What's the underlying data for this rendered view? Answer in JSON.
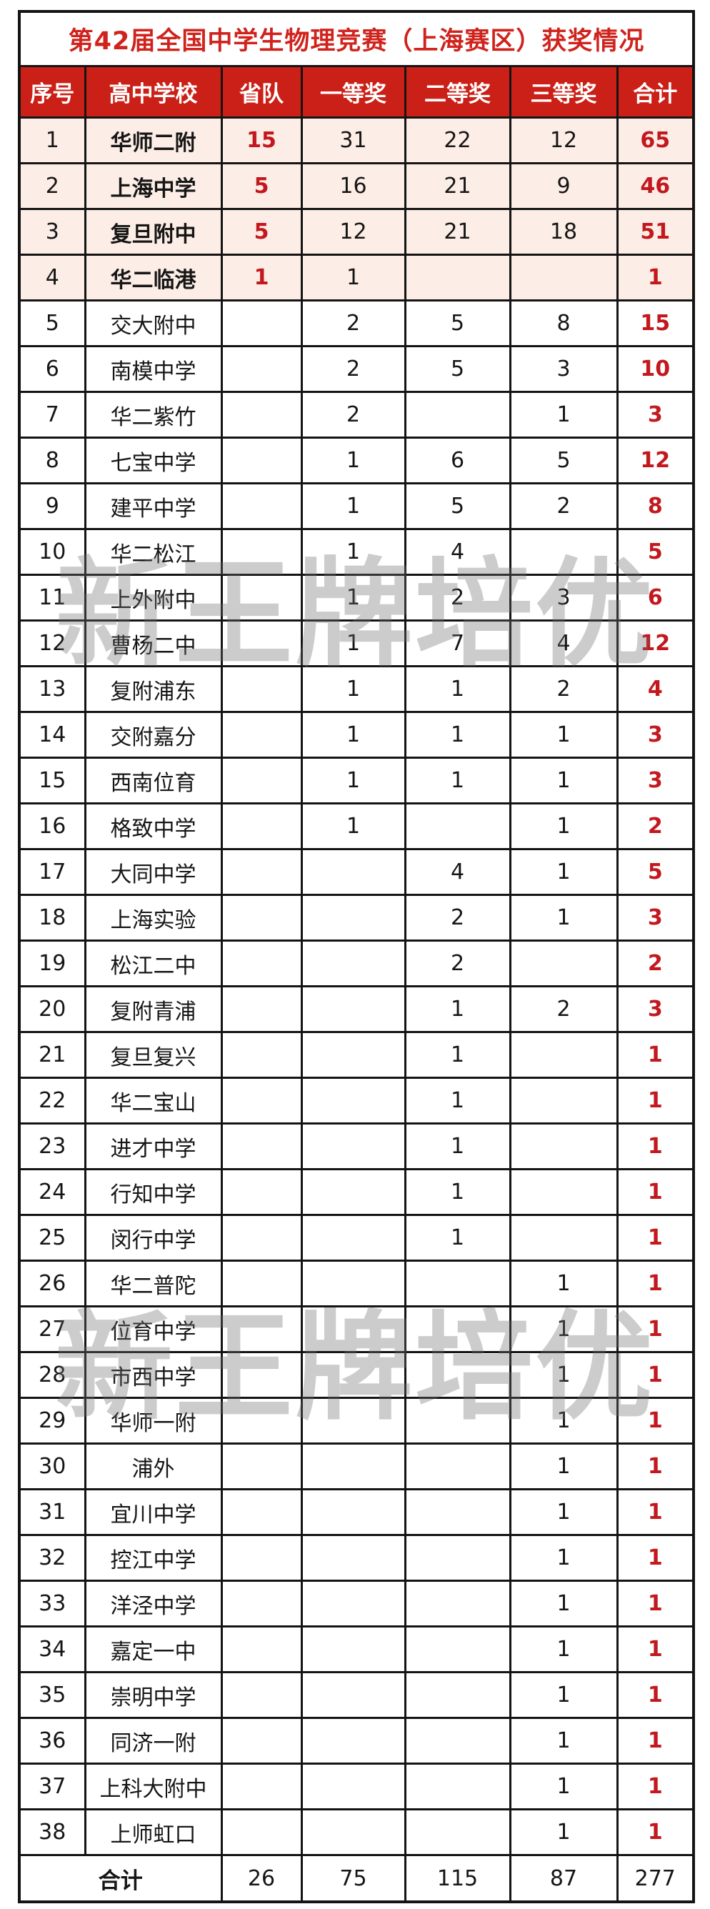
{
  "page": {
    "title": "第42届全国中学生物理竞赛（上海赛区）获奖情况"
  },
  "watermark": {
    "text": "新王牌培优"
  },
  "colors": {
    "header_bg": "#cb2017",
    "title_text": "#d0231d",
    "accent_red": "#c2181e",
    "highlight_row_bg": "#fceee6",
    "border": "#141414",
    "watermark": "rgba(110,110,110,0.35)"
  },
  "table": {
    "columns": [
      "序号",
      "高中学校",
      "省队",
      "一等奖",
      "二等奖",
      "三等奖",
      "合计"
    ],
    "rows": [
      {
        "no": "1",
        "school": "华师二附",
        "team": "15",
        "first": "31",
        "second": "22",
        "third": "12",
        "total": "65",
        "highlight": true
      },
      {
        "no": "2",
        "school": "上海中学",
        "team": "5",
        "first": "16",
        "second": "21",
        "third": "9",
        "total": "46",
        "highlight": true
      },
      {
        "no": "3",
        "school": "复旦附中",
        "team": "5",
        "first": "12",
        "second": "21",
        "third": "18",
        "total": "51",
        "highlight": true
      },
      {
        "no": "4",
        "school": "华二临港",
        "team": "1",
        "first": "1",
        "second": "",
        "third": "",
        "total": "1",
        "highlight": true
      },
      {
        "no": "5",
        "school": "交大附中",
        "team": "",
        "first": "2",
        "second": "5",
        "third": "8",
        "total": "15",
        "highlight": false
      },
      {
        "no": "6",
        "school": "南模中学",
        "team": "",
        "first": "2",
        "second": "5",
        "third": "3",
        "total": "10",
        "highlight": false
      },
      {
        "no": "7",
        "school": "华二紫竹",
        "team": "",
        "first": "2",
        "second": "",
        "third": "1",
        "total": "3",
        "highlight": false
      },
      {
        "no": "8",
        "school": "七宝中学",
        "team": "",
        "first": "1",
        "second": "6",
        "third": "5",
        "total": "12",
        "highlight": false
      },
      {
        "no": "9",
        "school": "建平中学",
        "team": "",
        "first": "1",
        "second": "5",
        "third": "2",
        "total": "8",
        "highlight": false
      },
      {
        "no": "10",
        "school": "华二松江",
        "team": "",
        "first": "1",
        "second": "4",
        "third": "",
        "total": "5",
        "highlight": false
      },
      {
        "no": "11",
        "school": "上外附中",
        "team": "",
        "first": "1",
        "second": "2",
        "third": "3",
        "total": "6",
        "highlight": false
      },
      {
        "no": "12",
        "school": "曹杨二中",
        "team": "",
        "first": "1",
        "second": "7",
        "third": "4",
        "total": "12",
        "highlight": false
      },
      {
        "no": "13",
        "school": "复附浦东",
        "team": "",
        "first": "1",
        "second": "1",
        "third": "2",
        "total": "4",
        "highlight": false
      },
      {
        "no": "14",
        "school": "交附嘉分",
        "team": "",
        "first": "1",
        "second": "1",
        "third": "1",
        "total": "3",
        "highlight": false
      },
      {
        "no": "15",
        "school": "西南位育",
        "team": "",
        "first": "1",
        "second": "1",
        "third": "1",
        "total": "3",
        "highlight": false
      },
      {
        "no": "16",
        "school": "格致中学",
        "team": "",
        "first": "1",
        "second": "",
        "third": "1",
        "total": "2",
        "highlight": false
      },
      {
        "no": "17",
        "school": "大同中学",
        "team": "",
        "first": "",
        "second": "4",
        "third": "1",
        "total": "5",
        "highlight": false
      },
      {
        "no": "18",
        "school": "上海实验",
        "team": "",
        "first": "",
        "second": "2",
        "third": "1",
        "total": "3",
        "highlight": false
      },
      {
        "no": "19",
        "school": "松江二中",
        "team": "",
        "first": "",
        "second": "2",
        "third": "",
        "total": "2",
        "highlight": false
      },
      {
        "no": "20",
        "school": "复附青浦",
        "team": "",
        "first": "",
        "second": "1",
        "third": "2",
        "total": "3",
        "highlight": false
      },
      {
        "no": "21",
        "school": "复旦复兴",
        "team": "",
        "first": "",
        "second": "1",
        "third": "",
        "total": "1",
        "highlight": false
      },
      {
        "no": "22",
        "school": "华二宝山",
        "team": "",
        "first": "",
        "second": "1",
        "third": "",
        "total": "1",
        "highlight": false
      },
      {
        "no": "23",
        "school": "进才中学",
        "team": "",
        "first": "",
        "second": "1",
        "third": "",
        "total": "1",
        "highlight": false
      },
      {
        "no": "24",
        "school": "行知中学",
        "team": "",
        "first": "",
        "second": "1",
        "third": "",
        "total": "1",
        "highlight": false
      },
      {
        "no": "25",
        "school": "闵行中学",
        "team": "",
        "first": "",
        "second": "1",
        "third": "",
        "total": "1",
        "highlight": false
      },
      {
        "no": "26",
        "school": "华二普陀",
        "team": "",
        "first": "",
        "second": "",
        "third": "1",
        "total": "1",
        "highlight": false
      },
      {
        "no": "27",
        "school": "位育中学",
        "team": "",
        "first": "",
        "second": "",
        "third": "1",
        "total": "1",
        "highlight": false
      },
      {
        "no": "28",
        "school": "市西中学",
        "team": "",
        "first": "",
        "second": "",
        "third": "1",
        "total": "1",
        "highlight": false
      },
      {
        "no": "29",
        "school": "华师一附",
        "team": "",
        "first": "",
        "second": "",
        "third": "1",
        "total": "1",
        "highlight": false
      },
      {
        "no": "30",
        "school": "浦外",
        "team": "",
        "first": "",
        "second": "",
        "third": "1",
        "total": "1",
        "highlight": false
      },
      {
        "no": "31",
        "school": "宜川中学",
        "team": "",
        "first": "",
        "second": "",
        "third": "1",
        "total": "1",
        "highlight": false
      },
      {
        "no": "32",
        "school": "控江中学",
        "team": "",
        "first": "",
        "second": "",
        "third": "1",
        "total": "1",
        "highlight": false
      },
      {
        "no": "33",
        "school": "洋泾中学",
        "team": "",
        "first": "",
        "second": "",
        "third": "1",
        "total": "1",
        "highlight": false
      },
      {
        "no": "34",
        "school": "嘉定一中",
        "team": "",
        "first": "",
        "second": "",
        "third": "1",
        "total": "1",
        "highlight": false
      },
      {
        "no": "35",
        "school": "崇明中学",
        "team": "",
        "first": "",
        "second": "",
        "third": "1",
        "total": "1",
        "highlight": false
      },
      {
        "no": "36",
        "school": "同济一附",
        "team": "",
        "first": "",
        "second": "",
        "third": "1",
        "total": "1",
        "highlight": false
      },
      {
        "no": "37",
        "school": "上科大附中",
        "team": "",
        "first": "",
        "second": "",
        "third": "1",
        "total": "1",
        "highlight": false
      },
      {
        "no": "38",
        "school": "上师虹口",
        "team": "",
        "first": "",
        "second": "",
        "third": "1",
        "total": "1",
        "highlight": false
      }
    ],
    "footer": {
      "label": "合计",
      "team": "26",
      "first": "75",
      "second": "115",
      "third": "87",
      "total": "277"
    }
  }
}
